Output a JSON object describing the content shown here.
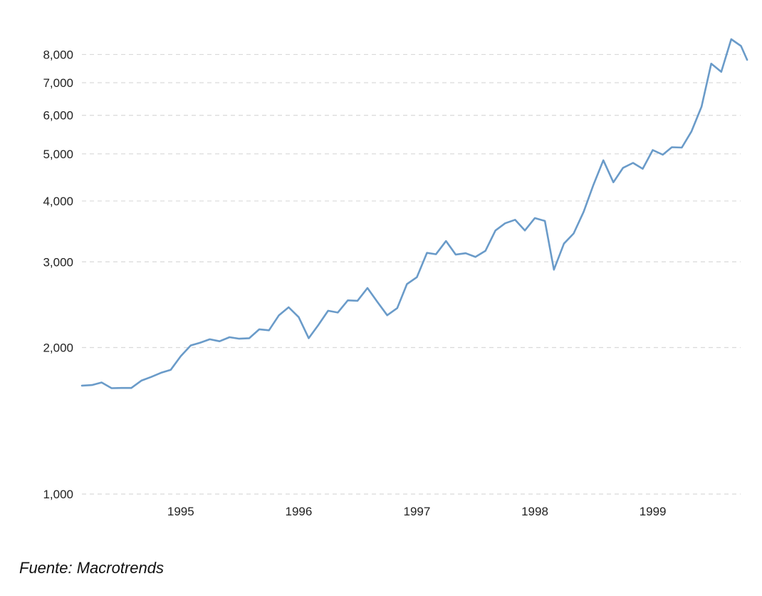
{
  "colors": {
    "line": "#6a9bc9",
    "grid": "#d9d9d9",
    "text": "#222222"
  },
  "source_note": "Fuente: Macrotrends",
  "chart_data": {
    "type": "line",
    "y_scale": "log",
    "grid": true,
    "ylim": [
      1000,
      8600
    ],
    "x_range": [
      "1994-03-01",
      "1999-09-30"
    ],
    "y_ticks": [
      {
        "value": 1000,
        "label": "1,000"
      },
      {
        "value": 2000,
        "label": "2,000"
      },
      {
        "value": 3000,
        "label": "3,000"
      },
      {
        "value": 4000,
        "label": "4,000"
      },
      {
        "value": 5000,
        "label": "5,000"
      },
      {
        "value": 6000,
        "label": "6,000"
      },
      {
        "value": 7000,
        "label": "7,000"
      },
      {
        "value": 8000,
        "label": "8,000"
      }
    ],
    "x_ticks": [
      {
        "value": "1995-01-01",
        "label": "1995"
      },
      {
        "value": "1996-01-01",
        "label": "1996"
      },
      {
        "value": "1997-01-01",
        "label": "1997"
      },
      {
        "value": "1998-01-01",
        "label": "1998"
      },
      {
        "value": "1999-01-01",
        "label": "1999"
      }
    ],
    "series": [
      {
        "points": [
          [
            "1994-03-01",
            1670
          ],
          [
            "1994-04-01",
            1675
          ],
          [
            "1994-05-01",
            1695
          ],
          [
            "1994-06-01",
            1650
          ],
          [
            "1994-07-01",
            1652
          ],
          [
            "1994-08-01",
            1652
          ],
          [
            "1994-09-01",
            1710
          ],
          [
            "1994-10-01",
            1740
          ],
          [
            "1994-11-01",
            1775
          ],
          [
            "1994-12-01",
            1800
          ],
          [
            "1995-01-01",
            1920
          ],
          [
            "1995-02-01",
            2020
          ],
          [
            "1995-03-01",
            2045
          ],
          [
            "1995-04-01",
            2080
          ],
          [
            "1995-05-01",
            2060
          ],
          [
            "1995-06-01",
            2100
          ],
          [
            "1995-07-01",
            2085
          ],
          [
            "1995-08-01",
            2090
          ],
          [
            "1995-09-01",
            2180
          ],
          [
            "1995-10-01",
            2170
          ],
          [
            "1995-11-01",
            2330
          ],
          [
            "1995-12-01",
            2420
          ],
          [
            "1996-01-01",
            2310
          ],
          [
            "1996-02-01",
            2090
          ],
          [
            "1996-03-01",
            2220
          ],
          [
            "1996-04-01",
            2380
          ],
          [
            "1996-05-01",
            2360
          ],
          [
            "1996-06-01",
            2500
          ],
          [
            "1996-07-01",
            2495
          ],
          [
            "1996-08-01",
            2650
          ],
          [
            "1996-09-01",
            2480
          ],
          [
            "1996-10-01",
            2330
          ],
          [
            "1996-11-01",
            2410
          ],
          [
            "1996-12-01",
            2700
          ],
          [
            "1997-01-01",
            2790
          ],
          [
            "1997-02-01",
            3130
          ],
          [
            "1997-03-01",
            3110
          ],
          [
            "1997-04-01",
            3310
          ],
          [
            "1997-05-01",
            3105
          ],
          [
            "1997-06-01",
            3125
          ],
          [
            "1997-07-01",
            3070
          ],
          [
            "1997-08-01",
            3160
          ],
          [
            "1997-09-01",
            3480
          ],
          [
            "1997-10-01",
            3600
          ],
          [
            "1997-11-01",
            3660
          ],
          [
            "1997-12-01",
            3480
          ],
          [
            "1998-01-01",
            3690
          ],
          [
            "1998-02-01",
            3640
          ],
          [
            "1998-03-01",
            2890
          ],
          [
            "1998-04-01",
            3270
          ],
          [
            "1998-05-01",
            3430
          ],
          [
            "1998-06-01",
            3800
          ],
          [
            "1998-07-01",
            4310
          ],
          [
            "1998-08-01",
            4850
          ],
          [
            "1998-09-01",
            4370
          ],
          [
            "1998-10-01",
            4680
          ],
          [
            "1998-11-01",
            4790
          ],
          [
            "1998-12-01",
            4660
          ],
          [
            "1999-01-01",
            5090
          ],
          [
            "1999-02-01",
            4980
          ],
          [
            "1999-03-01",
            5160
          ],
          [
            "1999-04-01",
            5150
          ],
          [
            "1999-05-01",
            5560
          ],
          [
            "1999-06-01",
            6250
          ],
          [
            "1999-07-01",
            7660
          ],
          [
            "1999-08-01",
            7370
          ],
          [
            "1999-09-01",
            8600
          ],
          [
            "1999-10-01",
            8330
          ],
          [
            "1999-10-20",
            7800
          ]
        ]
      }
    ]
  }
}
